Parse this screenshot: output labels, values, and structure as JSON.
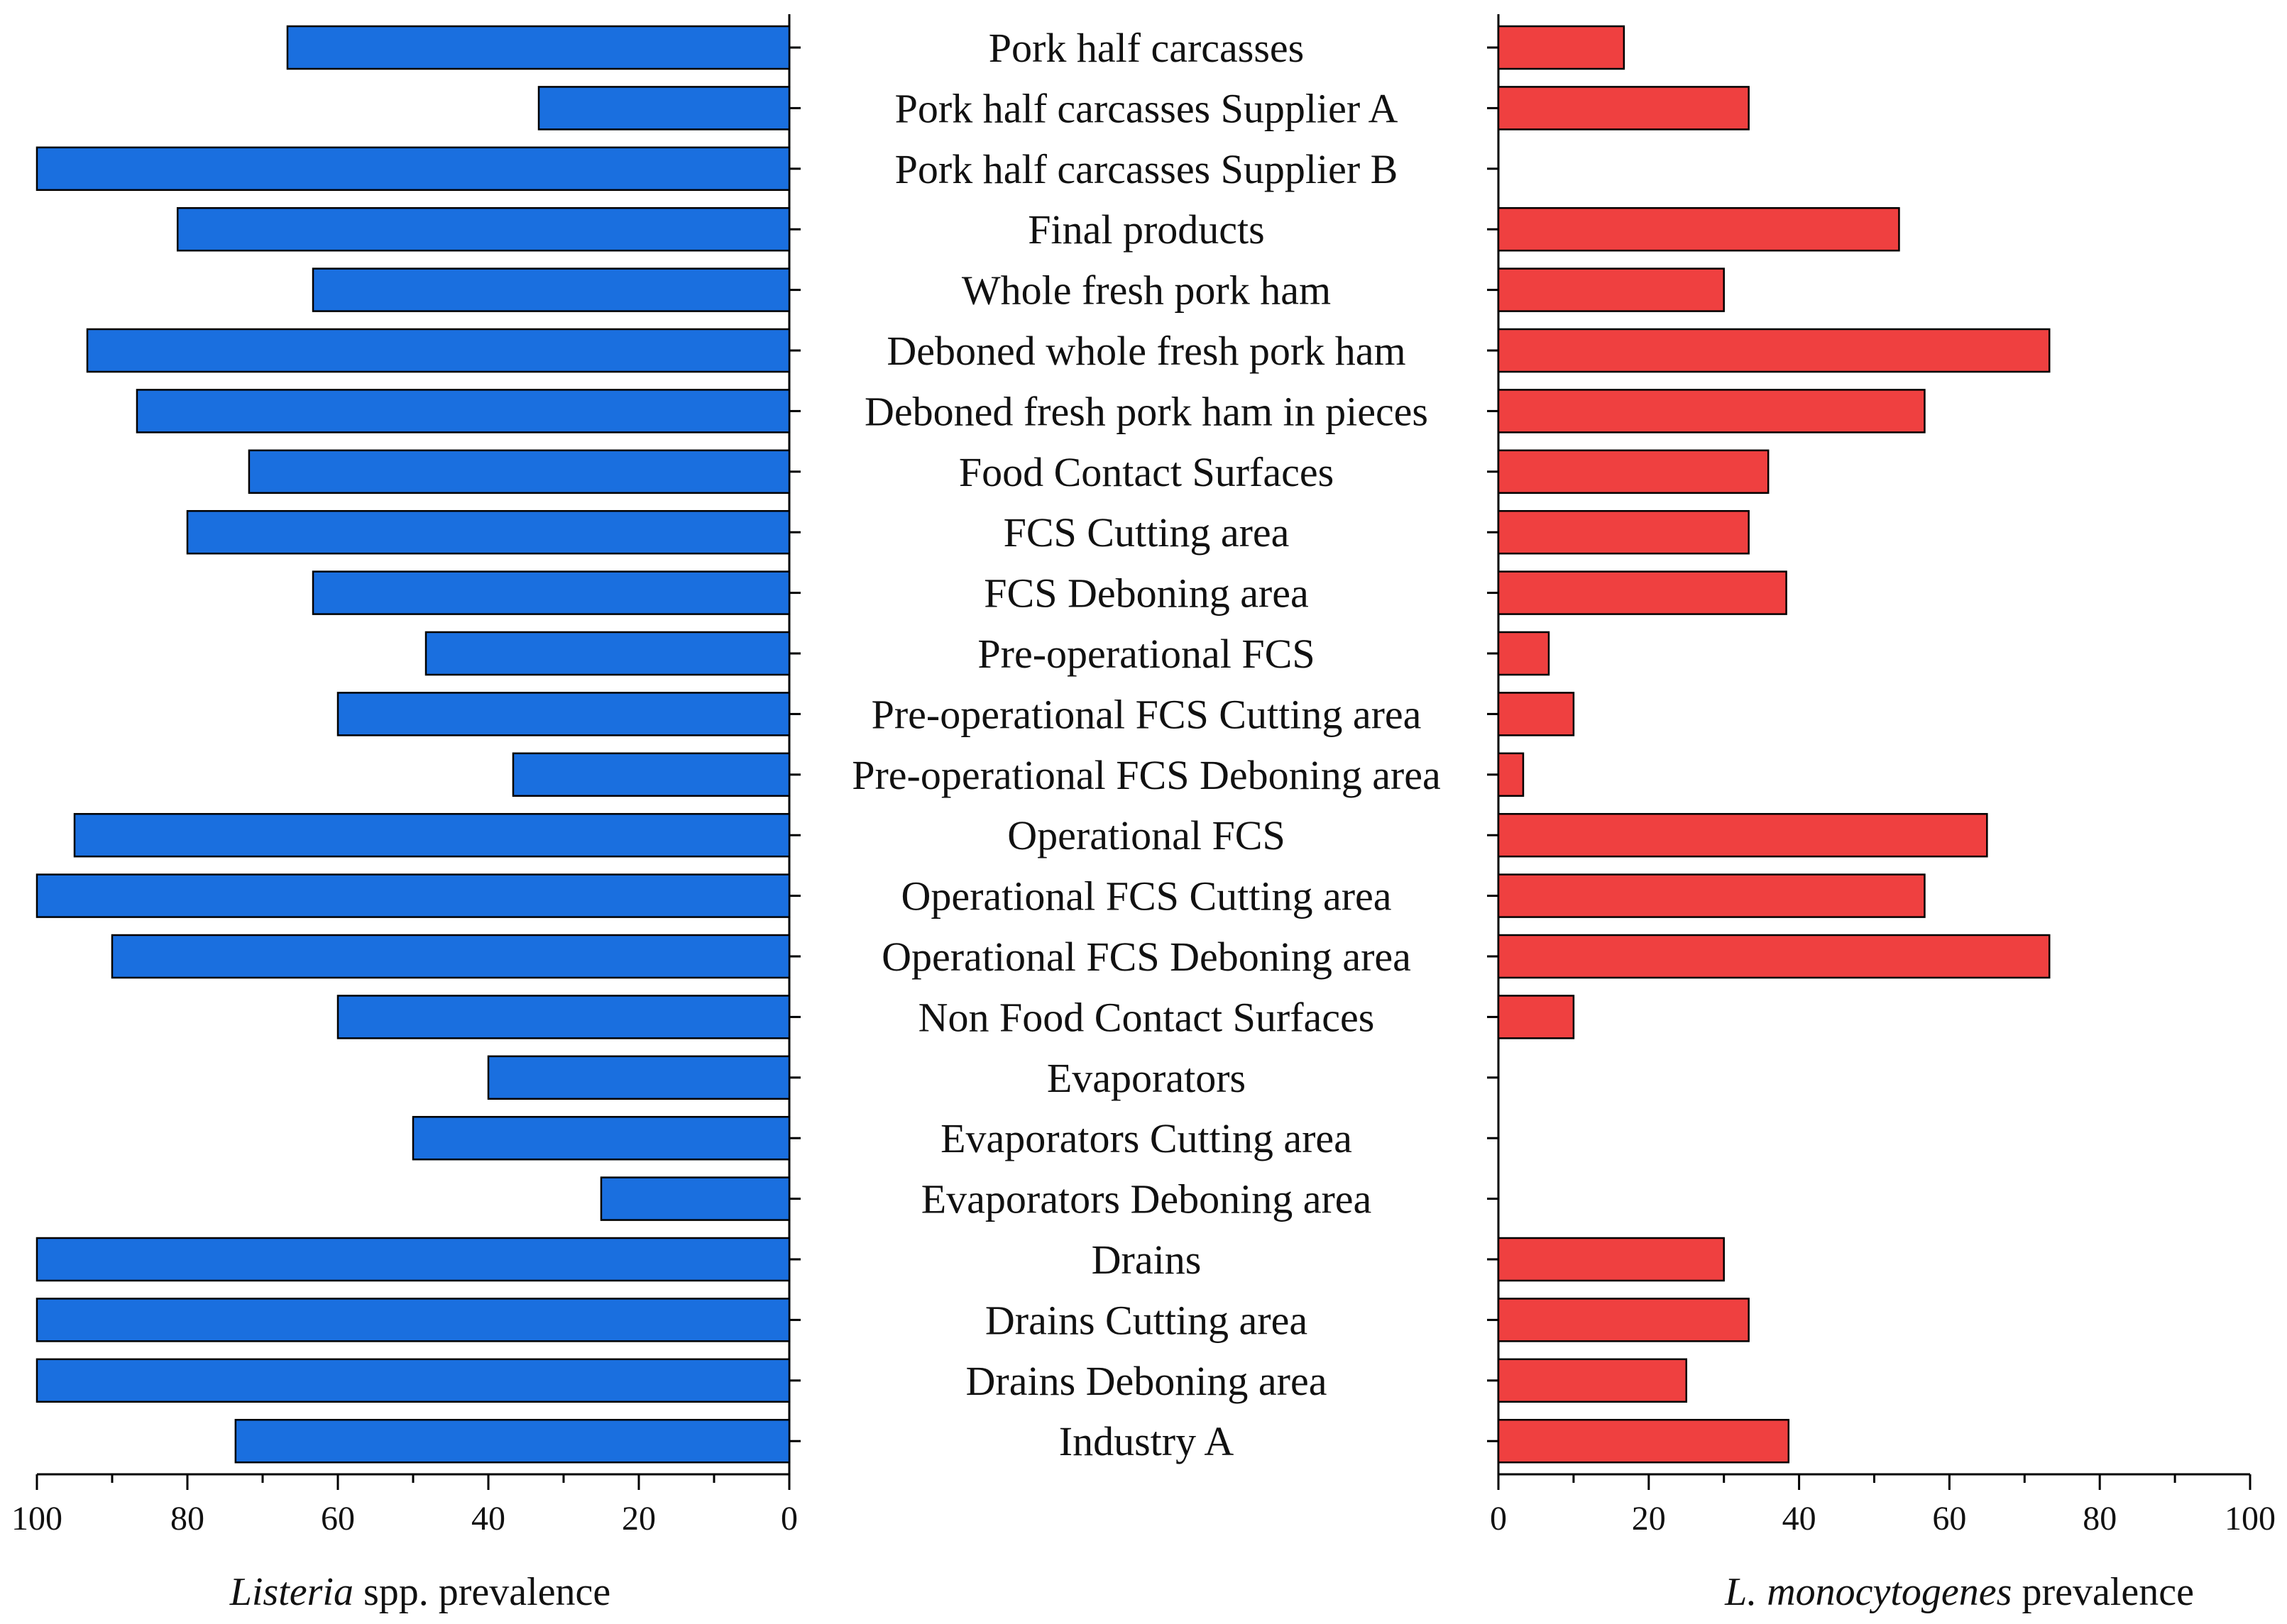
{
  "chart_data": [
    {
      "type": "bar",
      "orientation": "horizontal",
      "direction": "right-to-left",
      "title": "",
      "xlabel_italic": "Listeria",
      "xlabel_rest": " spp. prevalence",
      "xlim": [
        0,
        100
      ],
      "ticks": [
        100,
        80,
        60,
        40,
        20,
        0
      ],
      "bar_color": "#1a6fdf",
      "categories": [
        "Pork half carcasses",
        "Pork half carcasses Supplier A",
        "Pork half carcasses Supplier B",
        "Final products",
        "Whole fresh pork ham",
        "Deboned whole fresh pork ham",
        "Deboned fresh pork ham in pieces",
        "Food Contact Surfaces",
        "FCS Cutting area",
        "FCS Deboning area",
        "Pre-operational FCS",
        "Pre-operational FCS Cutting area",
        "Pre-operational FCS Deboning area",
        "Operational FCS",
        "Operational FCS Cutting area",
        "Operational FCS Deboning area",
        "Non Food Contact Surfaces",
        "Evaporators",
        "Evaporators Cutting area",
        "Evaporators Deboning area",
        "Drains",
        "Drains Cutting area",
        "Drains Deboning area",
        "Industry A"
      ],
      "values": [
        66.7,
        33.3,
        100,
        81.3,
        63.3,
        93.3,
        86.7,
        71.8,
        80.0,
        63.3,
        48.3,
        60.0,
        36.7,
        95.0,
        100,
        90.0,
        60.0,
        40.0,
        50.0,
        25.0,
        100,
        100,
        100,
        73.6
      ]
    },
    {
      "type": "bar",
      "orientation": "horizontal",
      "direction": "left-to-right",
      "title": "",
      "xlabel_italic": "L. monocytogenes",
      "xlabel_rest": " prevalence",
      "xlim": [
        0,
        100
      ],
      "ticks": [
        0,
        20,
        40,
        60,
        80,
        100
      ],
      "bar_color": "#ef4040",
      "categories_ref": "shared with first chart",
      "values": [
        16.7,
        33.3,
        0,
        53.3,
        30.0,
        73.3,
        56.7,
        35.9,
        33.3,
        38.3,
        6.7,
        10.0,
        3.3,
        65.0,
        56.7,
        73.3,
        10.0,
        0,
        0,
        0,
        30.0,
        33.3,
        25.0,
        38.6
      ]
    }
  ]
}
